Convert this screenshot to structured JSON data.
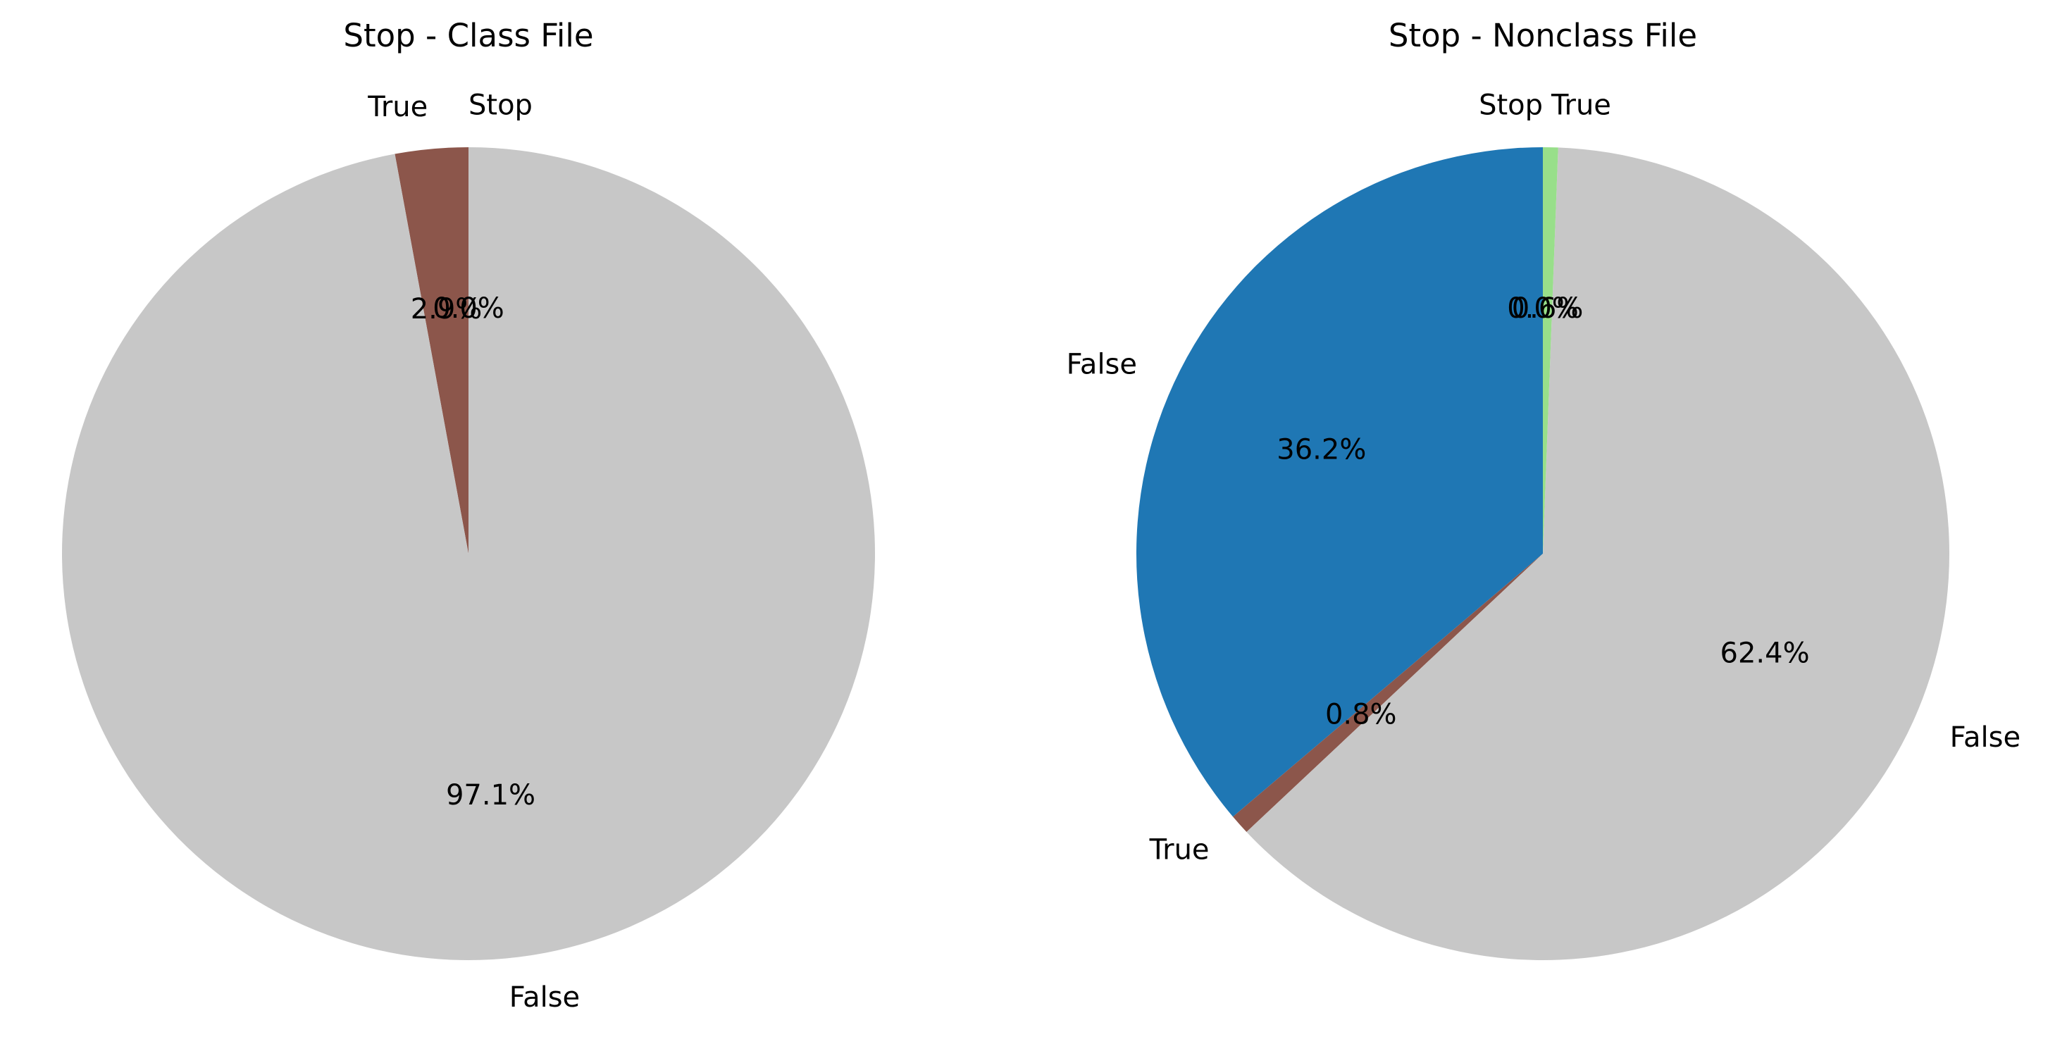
{
  "chart_data": [
    {
      "type": "pie",
      "title": "Stop - Class File",
      "start_angle_deg": 90,
      "slices": [
        {
          "label": "Stop",
          "value": 0.0,
          "pct_label": "0.0%",
          "color": "#c7c7c7"
        },
        {
          "label": "True",
          "value": 2.9,
          "pct_label": "2.9%",
          "color": "#8c564b"
        },
        {
          "label": "False",
          "value": 97.1,
          "pct_label": "97.1%",
          "color": "#c7c7c7"
        }
      ]
    },
    {
      "type": "pie",
      "title": "Stop - Nonclass File",
      "start_angle_deg": 90,
      "slices": [
        {
          "label": "False",
          "value": 36.2,
          "pct_label": "36.2%",
          "color": "#1f77b4"
        },
        {
          "label": "True",
          "value": 0.8,
          "pct_label": "0.8%",
          "color": "#8c564b"
        },
        {
          "label": "False",
          "value": 62.4,
          "pct_label": "62.4%",
          "color": "#c7c7c7"
        },
        {
          "label": "True",
          "value": 0.6,
          "pct_label": "0.6%",
          "color": "#98df8a"
        },
        {
          "label": "Stop",
          "value": 0.0,
          "pct_label": "0.0%",
          "color": "#c7c7c7"
        }
      ]
    }
  ]
}
